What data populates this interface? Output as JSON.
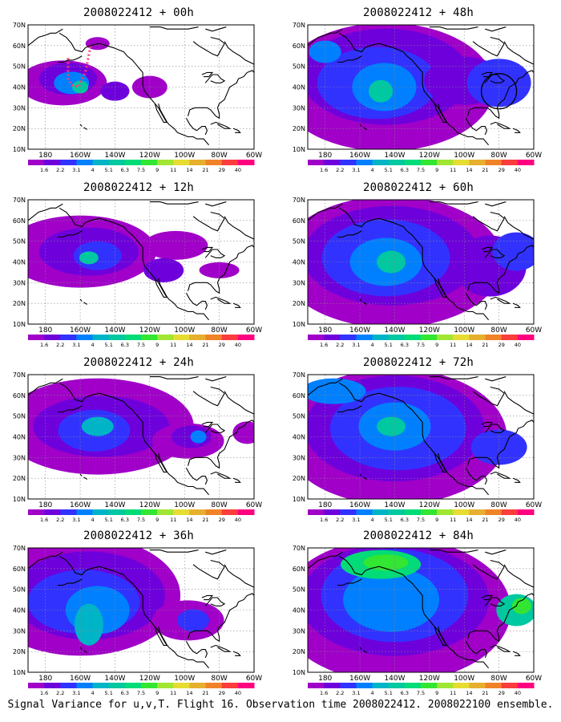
{
  "panels": [
    {
      "title": "2008022412 + 00h",
      "flight_track": true,
      "circle": false,
      "intensity": 0.45
    },
    {
      "title": "2008022412 + 12h",
      "flight_track": false,
      "circle": false,
      "intensity": 0.55
    },
    {
      "title": "2008022412 + 24h",
      "flight_track": false,
      "circle": false,
      "intensity": 0.6
    },
    {
      "title": "2008022412 + 36h",
      "flight_track": false,
      "circle": false,
      "intensity": 0.7
    },
    {
      "title": "2008022412 + 48h",
      "flight_track": false,
      "circle": true,
      "intensity": 0.75
    },
    {
      "title": "2008022412 + 60h",
      "flight_track": false,
      "circle": false,
      "intensity": 0.8
    },
    {
      "title": "2008022412 + 72h",
      "flight_track": false,
      "circle": false,
      "intensity": 0.85
    },
    {
      "title": "2008022412 + 84h",
      "flight_track": false,
      "circle": false,
      "intensity": 0.95
    }
  ],
  "axes": {
    "lat_labels": [
      "10N",
      "20N",
      "30N",
      "40N",
      "50N",
      "60N",
      "70N"
    ],
    "lon_labels": [
      "180",
      "160W",
      "140W",
      "120W",
      "100W",
      "80W",
      "60W"
    ]
  },
  "colorbar": {
    "labels": [
      "1.6",
      "2.2",
      "3.1",
      "4",
      "5.1",
      "6.3",
      "7.5",
      "9",
      "11",
      "14",
      "21",
      "29",
      "40"
    ],
    "colors": [
      "#a000c8",
      "#6e00dc",
      "#3232ff",
      "#0080ff",
      "#00b4c8",
      "#00c8a0",
      "#00dc78",
      "#32e632",
      "#a0e632",
      "#e6dc32",
      "#e6af2d",
      "#f08228",
      "#fa3c3c",
      "#ff0080"
    ]
  },
  "footer": "Signal Variance for u,v,T. Flight 16. Observation time 2008022412. 2008022100 ensemble."
}
